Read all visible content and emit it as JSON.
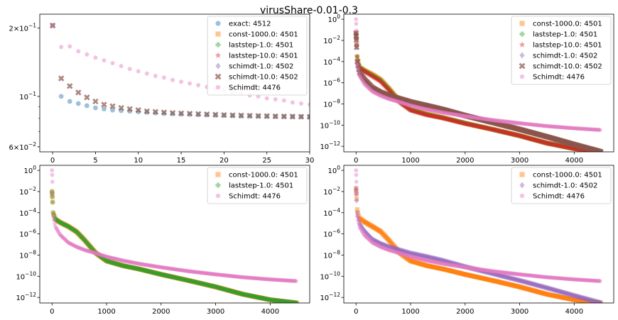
{
  "figure": {
    "suptitle": "virusShare-0.01-0.3"
  },
  "colors": {
    "exact": "#1f77b4",
    "const": "#ff7f0e",
    "laststep1": "#2ca02c",
    "laststep10": "#d62728",
    "schimdt1": "#9467bd",
    "schimdt10": "#8c564b",
    "Schimdt": "#e377c2"
  },
  "chart_data": [
    {
      "type": "scatter",
      "title": "",
      "yscale": "log",
      "xlim": [
        -1.5,
        30
      ],
      "ylim": [
        0.057,
        0.23
      ],
      "xticks": [
        0,
        5,
        10,
        15,
        20,
        25,
        30
      ],
      "yticks": [
        {
          "value": 0.2,
          "mant": "2",
          "exp": "−1"
        },
        {
          "value": 0.1,
          "mant": "",
          "exp": "−1"
        },
        {
          "value": 0.06,
          "mant": "6",
          "exp": "−2"
        }
      ],
      "legend_loc": "upper right",
      "series": [
        {
          "name": "exact: 4512",
          "color": "exact",
          "marker": "circle",
          "x": [
            0,
            1,
            2,
            3,
            4,
            5,
            6,
            7,
            8,
            9,
            10,
            11,
            12,
            13,
            14,
            15,
            16,
            17,
            18,
            19,
            20,
            21,
            22,
            23,
            24,
            25,
            26,
            27,
            28,
            29,
            30
          ],
          "y": [
            0.205,
            0.1,
            0.095,
            0.093,
            0.091,
            0.089,
            0.088,
            0.087,
            0.0865,
            0.086,
            0.0855,
            0.085,
            0.0845,
            0.084,
            0.0838,
            0.0835,
            0.0833,
            0.083,
            0.0828,
            0.0826,
            0.0824,
            0.0822,
            0.082,
            0.0819,
            0.0818,
            0.0817,
            0.0816,
            0.0815,
            0.0814,
            0.0813,
            0.0812
          ]
        },
        {
          "name": "const-1000.0: 4501",
          "color": "const",
          "marker": "square",
          "x": [],
          "y": []
        },
        {
          "name": "laststep-1.0: 4501",
          "color": "laststep1",
          "marker": "plus",
          "x": [],
          "y": []
        },
        {
          "name": "laststep-10.0: 4501",
          "color": "laststep10",
          "marker": "star",
          "x": [],
          "y": []
        },
        {
          "name": "schimdt-1.0: 4502",
          "color": "schimdt1",
          "marker": "diamond",
          "x": [],
          "y": []
        },
        {
          "name": "schimdt-10.0: 4502",
          "color": "schimdt10",
          "marker": "xmark",
          "x": [
            0,
            1,
            2,
            3,
            4,
            5,
            6,
            7,
            8,
            9,
            10,
            11,
            12,
            13,
            14,
            15,
            16,
            17,
            18,
            19,
            20,
            21,
            22,
            23,
            24,
            25,
            26,
            27,
            28,
            29,
            30
          ],
          "y": [
            0.205,
            0.12,
            0.111,
            0.104,
            0.099,
            0.095,
            0.092,
            0.0905,
            0.089,
            0.088,
            0.087,
            0.086,
            0.0855,
            0.085,
            0.0845,
            0.0842,
            0.084,
            0.0837,
            0.0834,
            0.0831,
            0.0828,
            0.0826,
            0.0824,
            0.0822,
            0.082,
            0.0819,
            0.0817,
            0.0816,
            0.0815,
            0.0814,
            0.0813
          ]
        },
        {
          "name": "Schimdt: 4476",
          "color": "Schimdt",
          "marker": "pentagon",
          "x": [
            0,
            1,
            2,
            3,
            4,
            5,
            6,
            7,
            8,
            9,
            10,
            11,
            12,
            13,
            14,
            15,
            16,
            17,
            18,
            19,
            20,
            21,
            22,
            23,
            24,
            25,
            26,
            27,
            28,
            29,
            30
          ],
          "y": [
            0.205,
            0.165,
            0.166,
            0.158,
            0.153,
            0.148,
            0.144,
            0.14,
            0.136,
            0.132,
            0.129,
            0.126,
            0.123,
            0.121,
            0.118,
            0.116,
            0.114,
            0.112,
            0.11,
            0.108,
            0.106,
            0.104,
            0.103,
            0.101,
            0.1,
            0.098,
            0.097,
            0.096,
            0.094,
            0.093,
            0.092
          ]
        }
      ]
    },
    {
      "type": "scatter",
      "title": "",
      "yscale": "log",
      "xlim": [
        -225,
        4725
      ],
      "ylim": [
        3e-13,
        3
      ],
      "xticks": [
        0,
        1000,
        2000,
        3000,
        4000
      ],
      "yticks": [
        {
          "value": 1,
          "mant": "",
          "exp": "0"
        },
        {
          "value": 0.01,
          "mant": "",
          "exp": "−2"
        },
        {
          "value": 0.0001,
          "mant": "",
          "exp": "−4"
        },
        {
          "value": 1e-06,
          "mant": "",
          "exp": "−6"
        },
        {
          "value": 1e-08,
          "mant": "",
          "exp": "−8"
        },
        {
          "value": 1e-10,
          "mant": "",
          "exp": "−10"
        },
        {
          "value": 1e-12,
          "mant": "",
          "exp": "−12"
        }
      ],
      "legend_loc": "upper right",
      "series": [
        {
          "name": "const-1000.0: 4501",
          "color": "const",
          "marker": "square",
          "x": [
            0,
            20,
            60,
            150,
            300,
            450,
            600,
            800,
            1000,
            1300,
            1600,
            2000,
            2500,
            3000,
            3500,
            4000,
            4500
          ],
          "y": [
            0.05,
            0.0003,
            3e-05,
            1.5e-05,
            6e-06,
            2e-06,
            3e-07,
            1.8e-08,
            3e-09,
            1.1e-09,
            5e-10,
            1.5e-10,
            4e-11,
            1e-11,
            2e-12,
            6e-13,
            3e-13
          ]
        },
        {
          "name": "laststep-1.0: 4501",
          "color": "laststep1",
          "marker": "plus",
          "x": [
            0,
            20,
            60,
            150,
            300,
            450,
            600,
            800,
            1000,
            1300,
            1600,
            2000,
            2500,
            3000,
            3500,
            4000,
            4500
          ],
          "y": [
            0.05,
            0.0003,
            3e-05,
            1.4e-05,
            5e-06,
            1.7e-06,
            2.6e-07,
            1.6e-08,
            2.8e-09,
            1e-09,
            4.8e-10,
            1.5e-10,
            4e-11,
            1e-11,
            2e-12,
            6e-13,
            3e-13
          ]
        },
        {
          "name": "laststep-10.0: 4501",
          "color": "laststep10",
          "marker": "star",
          "x": [
            0,
            20,
            60,
            150,
            300,
            450,
            600,
            800,
            1000,
            1300,
            1600,
            2000,
            2500,
            3000,
            3500,
            4000,
            4500
          ],
          "y": [
            0.05,
            0.0003,
            2.5e-05,
            1.2e-05,
            4e-06,
            1.3e-06,
            2e-07,
            1.4e-08,
            2.5e-09,
            9e-10,
            4.5e-10,
            1.4e-10,
            4e-11,
            1e-11,
            2e-12,
            6e-13,
            3e-13
          ]
        },
        {
          "name": "schimdt-1.0: 4502",
          "color": "schimdt1",
          "marker": "diamond",
          "x": [
            0,
            20,
            60,
            150,
            300,
            450,
            600,
            800,
            1000,
            1300,
            1600,
            2000,
            2500,
            3000,
            3500,
            4000,
            4500
          ],
          "y": [
            0.05,
            0.0001,
            1e-05,
            2e-06,
            3e-07,
            1.2e-07,
            6e-08,
            3e-08,
            1.5e-08,
            7e-09,
            3e-09,
            8e-10,
            1.8e-10,
            4e-11,
            8e-12,
            1.5e-12,
            3e-13
          ]
        },
        {
          "name": "schimdt-10.0: 4502",
          "color": "schimdt10",
          "marker": "xmark",
          "x": [
            0,
            20,
            60,
            150,
            300,
            450,
            600,
            800,
            1000,
            1300,
            1600,
            2000,
            2500,
            3000,
            3500,
            4000,
            4500
          ],
          "y": [
            0.05,
            0.0001,
            1e-05,
            2.2e-06,
            3.5e-07,
            1.3e-07,
            6.5e-08,
            3.2e-08,
            1.6e-08,
            7e-09,
            3e-09,
            8e-10,
            1.8e-10,
            4e-11,
            8e-12,
            1.5e-12,
            3e-13
          ]
        },
        {
          "name": "Schimdt: 4476",
          "color": "Schimdt",
          "marker": "pentagon",
          "x": [
            0,
            20,
            60,
            150,
            300,
            450,
            600,
            800,
            1000,
            1300,
            1600,
            2000,
            2500,
            3000,
            3500,
            4000,
            4476
          ],
          "y": [
            1,
            5e-05,
            5e-06,
            8e-07,
            1.5e-07,
            6e-08,
            3e-08,
            1.5e-08,
            7e-09,
            3e-09,
            1.5e-09,
            7e-10,
            3e-10,
            1.5e-10,
            8e-11,
            5e-11,
            3.5e-11
          ]
        }
      ]
    },
    {
      "type": "scatter",
      "title": "",
      "yscale": "log",
      "xlim": [
        -225,
        4725
      ],
      "ylim": [
        3e-13,
        3
      ],
      "xticks": [
        0,
        1000,
        2000,
        3000,
        4000
      ],
      "yticks": [
        {
          "value": 1,
          "mant": "",
          "exp": "0"
        },
        {
          "value": 0.01,
          "mant": "",
          "exp": "−2"
        },
        {
          "value": 0.0001,
          "mant": "",
          "exp": "−4"
        },
        {
          "value": 1e-06,
          "mant": "",
          "exp": "−6"
        },
        {
          "value": 1e-08,
          "mant": "",
          "exp": "−8"
        },
        {
          "value": 1e-10,
          "mant": "",
          "exp": "−10"
        },
        {
          "value": 1e-12,
          "mant": "",
          "exp": "−12"
        }
      ],
      "legend_loc": "upper right",
      "series": [
        {
          "name": "const-1000.0: 4501",
          "color": "const",
          "marker": "square",
          "x": [
            0,
            20,
            60,
            150,
            300,
            450,
            600,
            800,
            1000,
            1300,
            1600,
            2000,
            2500,
            3000,
            3500,
            4000,
            4500
          ],
          "y": [
            0.01,
            0.0001,
            2.5e-05,
            1.2e-05,
            5e-06,
            1.6e-06,
            2.5e-07,
            1.6e-08,
            2.8e-09,
            1e-09,
            4.8e-10,
            1.5e-10,
            4e-11,
            1e-11,
            2e-12,
            6e-13,
            3e-13
          ]
        },
        {
          "name": "laststep-1.0: 4501",
          "color": "laststep1",
          "marker": "plus",
          "x": [
            0,
            20,
            60,
            150,
            300,
            450,
            600,
            800,
            1000,
            1300,
            1600,
            2000,
            2500,
            3000,
            3500,
            4000,
            4500
          ],
          "y": [
            0.01,
            0.0001,
            2.5e-05,
            1.2e-05,
            5e-06,
            1.6e-06,
            2.5e-07,
            1.6e-08,
            2.8e-09,
            1e-09,
            4.8e-10,
            1.5e-10,
            4e-11,
            1e-11,
            2e-12,
            6e-13,
            3e-13
          ]
        },
        {
          "name": "Schimdt: 4476",
          "color": "Schimdt",
          "marker": "pentagon",
          "x": [
            0,
            20,
            60,
            150,
            300,
            450,
            600,
            800,
            1000,
            1300,
            1600,
            2000,
            2500,
            3000,
            3500,
            4000,
            4476
          ],
          "y": [
            1,
            5e-05,
            5e-06,
            8e-07,
            1.5e-07,
            6e-08,
            3e-08,
            1.5e-08,
            7e-09,
            3e-09,
            1.5e-09,
            7e-10,
            3e-10,
            1.5e-10,
            8e-11,
            5e-11,
            3.5e-11
          ]
        }
      ]
    },
    {
      "type": "scatter",
      "title": "",
      "yscale": "log",
      "xlim": [
        -225,
        4725
      ],
      "ylim": [
        3e-13,
        3
      ],
      "xticks": [
        0,
        1000,
        2000,
        3000,
        4000
      ],
      "yticks": [
        {
          "value": 1,
          "mant": "",
          "exp": "0"
        },
        {
          "value": 0.01,
          "mant": "",
          "exp": "−2"
        },
        {
          "value": 0.0001,
          "mant": "",
          "exp": "−4"
        },
        {
          "value": 1e-06,
          "mant": "",
          "exp": "−6"
        },
        {
          "value": 1e-08,
          "mant": "",
          "exp": "−8"
        },
        {
          "value": 1e-10,
          "mant": "",
          "exp": "−10"
        },
        {
          "value": 1e-12,
          "mant": "",
          "exp": "−12"
        }
      ],
      "legend_loc": "upper right",
      "series": [
        {
          "name": "const-1000.0: 4501",
          "color": "const",
          "marker": "square",
          "x": [
            0,
            20,
            60,
            150,
            300,
            450,
            600,
            800,
            1000,
            1300,
            1600,
            2000,
            2500,
            3000,
            3500,
            4000,
            4500
          ],
          "y": [
            0.02,
            0.0002,
            3e-05,
            1.4e-05,
            5e-06,
            1.7e-06,
            2.6e-07,
            1.6e-08,
            2.8e-09,
            1e-09,
            4.8e-10,
            1.5e-10,
            4e-11,
            1e-11,
            2e-12,
            6e-13,
            3e-13
          ]
        },
        {
          "name": "schimdt-1.0: 4502",
          "color": "schimdt1",
          "marker": "diamond",
          "x": [
            0,
            20,
            60,
            150,
            300,
            450,
            600,
            800,
            1000,
            1300,
            1600,
            2000,
            2500,
            3000,
            3500,
            4000,
            4500
          ],
          "y": [
            0.02,
            0.0001,
            1e-05,
            2e-06,
            3e-07,
            1.2e-07,
            6e-08,
            3e-08,
            1.5e-08,
            7e-09,
            3e-09,
            8e-10,
            1.8e-10,
            4e-11,
            8e-12,
            1.5e-12,
            3e-13
          ]
        },
        {
          "name": "Schimdt: 4476",
          "color": "Schimdt",
          "marker": "pentagon",
          "x": [
            0,
            20,
            60,
            150,
            300,
            450,
            600,
            800,
            1000,
            1300,
            1600,
            2000,
            2500,
            3000,
            3500,
            4000,
            4476
          ],
          "y": [
            1,
            5e-05,
            5e-06,
            8e-07,
            1.5e-07,
            6e-08,
            3e-08,
            1.5e-08,
            7e-09,
            3e-09,
            1.5e-09,
            7e-10,
            3e-10,
            1.5e-10,
            8e-11,
            5e-11,
            3.5e-11
          ]
        }
      ]
    }
  ]
}
